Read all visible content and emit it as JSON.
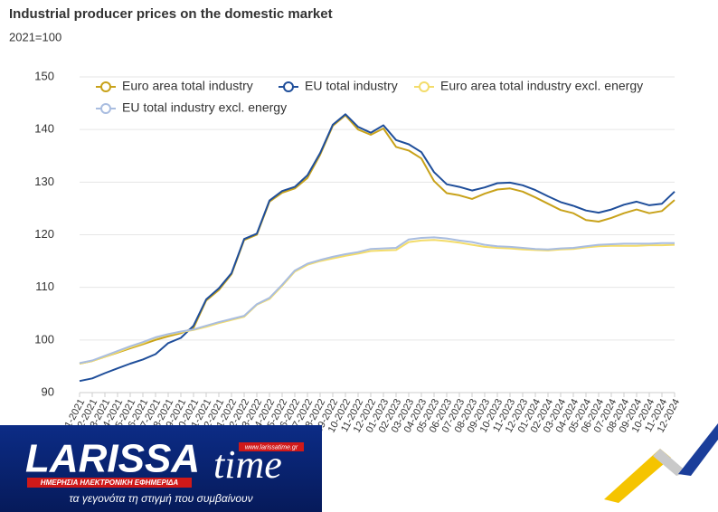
{
  "chart_data": {
    "type": "line",
    "title": "Industrial producer prices on the domestic market",
    "subtitle": "2021=100",
    "categories": [
      "01-2021",
      "02-2021",
      "03-2021",
      "04-2021",
      "05-2021",
      "06-2021",
      "07-2021",
      "08-2021",
      "09-2021",
      "10-2021",
      "11-2021",
      "12-2021",
      "01-2022",
      "02-2022",
      "03-2022",
      "04-2022",
      "05-2022",
      "06-2022",
      "07-2022",
      "08-2022",
      "09-2022",
      "10-2022",
      "11-2022",
      "12-2022",
      "01-2023",
      "02-2023",
      "03-2023",
      "04-2023",
      "05-2023",
      "06-2023",
      "07-2023",
      "08-2023",
      "09-2023",
      "10-2023",
      "11-2023",
      "12-2023",
      "01-2024",
      "02-2024",
      "03-2024",
      "04-2024",
      "05-2024",
      "06-2024",
      "07-2024",
      "08-2024",
      "09-2024",
      "10-2024",
      "11-2024",
      "12-2024"
    ],
    "series": [
      {
        "name": "Euro area total industry",
        "color": "#c8a21a",
        "values": [
          95.5,
          96.0,
          96.8,
          97.6,
          98.4,
          99.2,
          100.0,
          100.7,
          101.3,
          102.3,
          107.5,
          109.5,
          112.5,
          119.0,
          120.0,
          126.3,
          128.0,
          128.8,
          130.8,
          135.2,
          140.7,
          142.7,
          140.0,
          139.0,
          140.2,
          136.7,
          136.0,
          134.5,
          130.2,
          127.9,
          127.5,
          126.8,
          127.8,
          128.6,
          128.8,
          128.2,
          127.1,
          125.9,
          124.7,
          124.1,
          122.8,
          122.5,
          123.2,
          124.1,
          124.8,
          124.1,
          124.5,
          126.6
        ]
      },
      {
        "name": "EU total industry",
        "color": "#1f4e9a",
        "values": [
          92.2,
          92.7,
          93.7,
          94.6,
          95.5,
          96.3,
          97.3,
          99.4,
          100.4,
          102.7,
          107.7,
          109.8,
          112.7,
          119.2,
          120.2,
          126.5,
          128.3,
          129.1,
          131.3,
          135.5,
          140.9,
          142.9,
          140.5,
          139.4,
          140.8,
          138.0,
          137.2,
          135.7,
          131.9,
          129.6,
          129.1,
          128.4,
          129.0,
          129.8,
          129.9,
          129.4,
          128.5,
          127.3,
          126.2,
          125.5,
          124.6,
          124.2,
          124.8,
          125.7,
          126.3,
          125.6,
          125.9,
          128.2
        ]
      },
      {
        "name": "Euro area total industry excl. energy",
        "color": "#f3dc6a",
        "values": [
          95.5,
          96.0,
          96.8,
          97.7,
          98.6,
          99.4,
          100.4,
          101.0,
          101.5,
          101.9,
          102.5,
          103.2,
          103.8,
          104.4,
          106.7,
          107.8,
          110.3,
          113.0,
          114.3,
          115.0,
          115.5,
          116.0,
          116.4,
          116.9,
          117.0,
          117.1,
          118.6,
          118.9,
          119.0,
          118.8,
          118.5,
          118.1,
          117.7,
          117.5,
          117.4,
          117.2,
          117.1,
          117.0,
          117.2,
          117.3,
          117.6,
          117.8,
          117.9,
          117.9,
          117.9,
          118.0,
          118.0,
          118.1
        ]
      },
      {
        "name": "EU total industry excl. energy",
        "color": "#a9bde0",
        "values": [
          95.6,
          96.1,
          97.0,
          97.9,
          98.8,
          99.6,
          100.5,
          101.1,
          101.6,
          102.0,
          102.7,
          103.4,
          104.0,
          104.6,
          106.8,
          108.0,
          110.5,
          113.2,
          114.5,
          115.2,
          115.8,
          116.3,
          116.7,
          117.3,
          117.4,
          117.5,
          119.1,
          119.4,
          119.5,
          119.3,
          118.9,
          118.6,
          118.1,
          117.8,
          117.7,
          117.5,
          117.3,
          117.2,
          117.4,
          117.5,
          117.8,
          118.1,
          118.2,
          118.3,
          118.3,
          118.3,
          118.4,
          118.4
        ]
      }
    ],
    "ylim": [
      90,
      150
    ],
    "yticks": [
      90,
      100,
      110,
      120,
      130,
      140,
      150
    ],
    "grid": true
  },
  "overlay": {
    "brand": "LARISSA",
    "brand2": "time",
    "url": "www.larissatime.gr",
    "tagline1": "ΗΜΕΡΗΣΙΑ ΗΛΕΚΤΡΟΝΙΚΗ ΕΦΗΜΕΡΙΔΑ",
    "tagline2": "τα γεγονότα τη στιγμή που συμβαίνουν"
  }
}
